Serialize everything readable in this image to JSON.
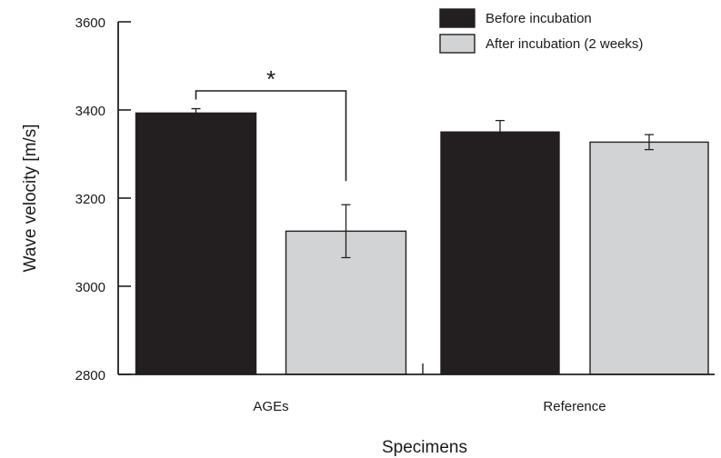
{
  "chart_data": {
    "type": "bar",
    "title": "",
    "xlabel": "Specimens",
    "ylabel": "Wave velocity [m/s]",
    "ylim": [
      2800,
      3600
    ],
    "yticks": [
      "2800",
      "3000",
      "3200",
      "3400",
      "3600"
    ],
    "categories": [
      "AGEs",
      "Reference"
    ],
    "series": [
      {
        "name": "Before incubation",
        "color": "#231f20",
        "values": [
          3393,
          3350
        ],
        "errors": [
          10,
          26
        ]
      },
      {
        "name": "After incubation (2 weeks)",
        "color": "#d1d3d4",
        "values": [
          3125,
          3327
        ],
        "errors": [
          60,
          17
        ]
      }
    ],
    "legend_position": "top-right",
    "significance": {
      "label": "*",
      "category": "AGEs",
      "between": [
        "Before incubation",
        "After incubation (2 weeks)"
      ]
    },
    "grid": false
  }
}
